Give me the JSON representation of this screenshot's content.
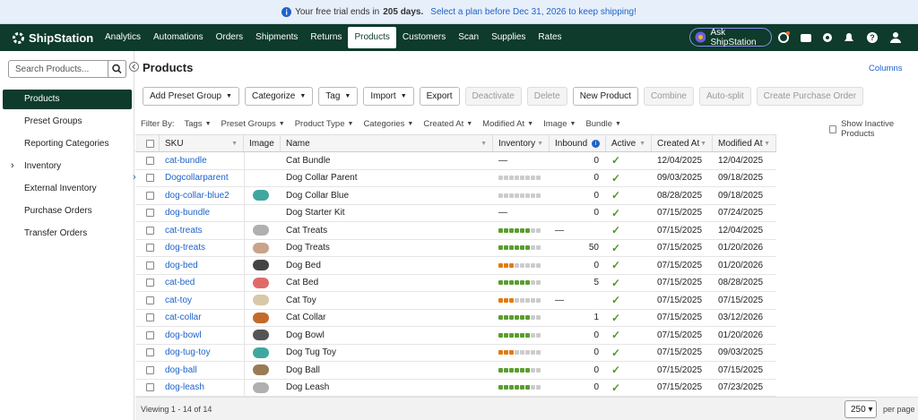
{
  "banner": {
    "text": "Your free trial ends in",
    "days": "205 days.",
    "link": "Select a plan before Dec 31, 2026 to keep shipping!"
  },
  "nav": {
    "brand": "ShipStation",
    "items": [
      "Analytics",
      "Automations",
      "Orders",
      "Shipments",
      "Returns",
      "Products",
      "Customers",
      "Scan",
      "Supplies",
      "Rates"
    ],
    "active": 5,
    "ask": "Ask ShipStation"
  },
  "sidebar": {
    "search": "Search Products...",
    "items": [
      "Products",
      "Preset Groups",
      "Reporting Categories",
      "Inventory",
      "External Inventory",
      "Purchase Orders",
      "Transfer Orders"
    ],
    "active": 0
  },
  "header": {
    "title": "Products",
    "columns_link": "Columns"
  },
  "toolbar": {
    "buttons": [
      {
        "label": "Add Preset Group",
        "dropdown": true
      },
      {
        "label": "Categorize",
        "dropdown": true
      },
      {
        "label": "Tag",
        "dropdown": true
      },
      {
        "label": "Import",
        "dropdown": true
      },
      {
        "label": "Export"
      },
      {
        "label": "Deactivate",
        "disabled": true
      },
      {
        "label": "Delete",
        "disabled": true
      },
      {
        "label": "New Product"
      },
      {
        "label": "Combine",
        "disabled": true
      },
      {
        "label": "Auto-split",
        "disabled": true
      },
      {
        "label": "Create Purchase Order",
        "disabled": true
      }
    ]
  },
  "filters": {
    "label": "Filter By:",
    "items": [
      "Tags",
      "Preset Groups",
      "Product Type",
      "Categories",
      "Created At",
      "Modified At",
      "Image",
      "Bundle"
    ],
    "inactive": "Show Inactive Products"
  },
  "table": {
    "columns": [
      "SKU",
      "Image",
      "Name",
      "Inventory",
      "Inbound",
      "Active",
      "Created At",
      "Modified At"
    ],
    "rows": [
      {
        "sku": "cat-bundle",
        "name": "Cat Bundle",
        "inventory": "—",
        "inbound": "0",
        "created": "12/04/2025",
        "modified": "12/04/2025"
      },
      {
        "sku": "Dogcollarparent",
        "name": "Dog Collar Parent",
        "inventory": "empty",
        "inbound": "0",
        "created": "09/03/2025",
        "modified": "09/18/2025"
      },
      {
        "sku": "dog-collar-blue2",
        "name": "Dog Collar Blue",
        "inventory": "empty",
        "inbound": "0",
        "created": "08/28/2025",
        "modified": "09/18/2025"
      },
      {
        "sku": "dog-bundle",
        "name": "Dog Starter Kit",
        "inventory": "—",
        "inbound": "0",
        "created": "07/15/2025",
        "modified": "07/24/2025"
      },
      {
        "sku": "cat-treats",
        "name": "Cat Treats",
        "inventory": "high",
        "inbound": "—",
        "created": "07/15/2025",
        "modified": "12/04/2025"
      },
      {
        "sku": "dog-treats",
        "name": "Dog Treats",
        "inventory": "high",
        "inbound": "50",
        "created": "07/15/2025",
        "modified": "01/20/2026"
      },
      {
        "sku": "dog-bed",
        "name": "Dog Bed",
        "inventory": "low",
        "inbound": "0",
        "created": "07/15/2025",
        "modified": "01/20/2026"
      },
      {
        "sku": "cat-bed",
        "name": "Cat Bed",
        "inventory": "high",
        "inbound": "5",
        "created": "07/15/2025",
        "modified": "08/28/2025"
      },
      {
        "sku": "cat-toy",
        "name": "Cat Toy",
        "inventory": "low",
        "inbound": "—",
        "created": "07/15/2025",
        "modified": "07/15/2025"
      },
      {
        "sku": "cat-collar",
        "name": "Cat Collar",
        "inventory": "high",
        "inbound": "1",
        "created": "07/15/2025",
        "modified": "03/12/2026"
      },
      {
        "sku": "dog-bowl",
        "name": "Dog Bowl",
        "inventory": "high",
        "inbound": "0",
        "created": "07/15/2025",
        "modified": "01/20/2026"
      },
      {
        "sku": "dog-tug-toy",
        "name": "Dog Tug Toy",
        "inventory": "low",
        "inbound": "0",
        "created": "07/15/2025",
        "modified": "09/03/2025"
      },
      {
        "sku": "dog-ball",
        "name": "Dog Ball",
        "inventory": "high",
        "inbound": "0",
        "created": "07/15/2025",
        "modified": "07/15/2025"
      },
      {
        "sku": "dog-leash",
        "name": "Dog Leash",
        "inventory": "high",
        "inbound": "0",
        "created": "07/15/2025",
        "modified": "07/23/2025"
      }
    ]
  },
  "footer": {
    "viewing": "Viewing 1 - 14 of 14",
    "page_size": "250",
    "per_page": "per page"
  }
}
